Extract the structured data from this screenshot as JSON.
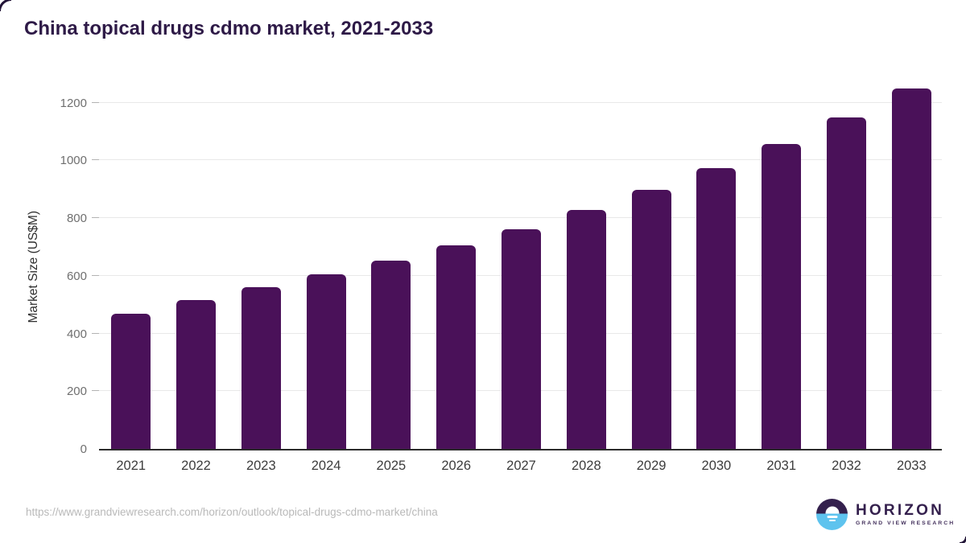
{
  "chart_data": {
    "type": "bar",
    "title": "China topical drugs cdmo market, 2021-2033",
    "ylabel": "Market Size (US$M)",
    "xlabel": "",
    "categories": [
      "2021",
      "2022",
      "2023",
      "2024",
      "2025",
      "2026",
      "2027",
      "2028",
      "2029",
      "2030",
      "2031",
      "2032",
      "2033"
    ],
    "values": [
      467,
      516,
      561,
      605,
      652,
      706,
      762,
      828,
      897,
      972,
      1056,
      1148,
      1250
    ],
    "yticks": [
      0,
      200,
      400,
      600,
      800,
      1000,
      1200
    ],
    "ylim": [
      0,
      1268
    ],
    "grid": "horizontal",
    "legend": "none",
    "bar_color": "#4a1159"
  },
  "footer": {
    "source_url": "https://www.grandviewresearch.com/horizon/outlook/topical-drugs-cdmo-market/china",
    "logo": {
      "name": "HORIZON",
      "tagline": "GRAND VIEW RESEARCH",
      "circle_top_color": "#34204d",
      "circle_bottom_color": "#5ec3ee"
    }
  },
  "colors": {
    "title": "#2e1a47",
    "bar": "#4a1159",
    "gridline": "#e8e8e8",
    "axis_line": "#2b2b2b",
    "y_tick_label": "#6f6f6f",
    "x_tick_label": "#3c3c3c",
    "url_text": "#b9b9b9"
  }
}
